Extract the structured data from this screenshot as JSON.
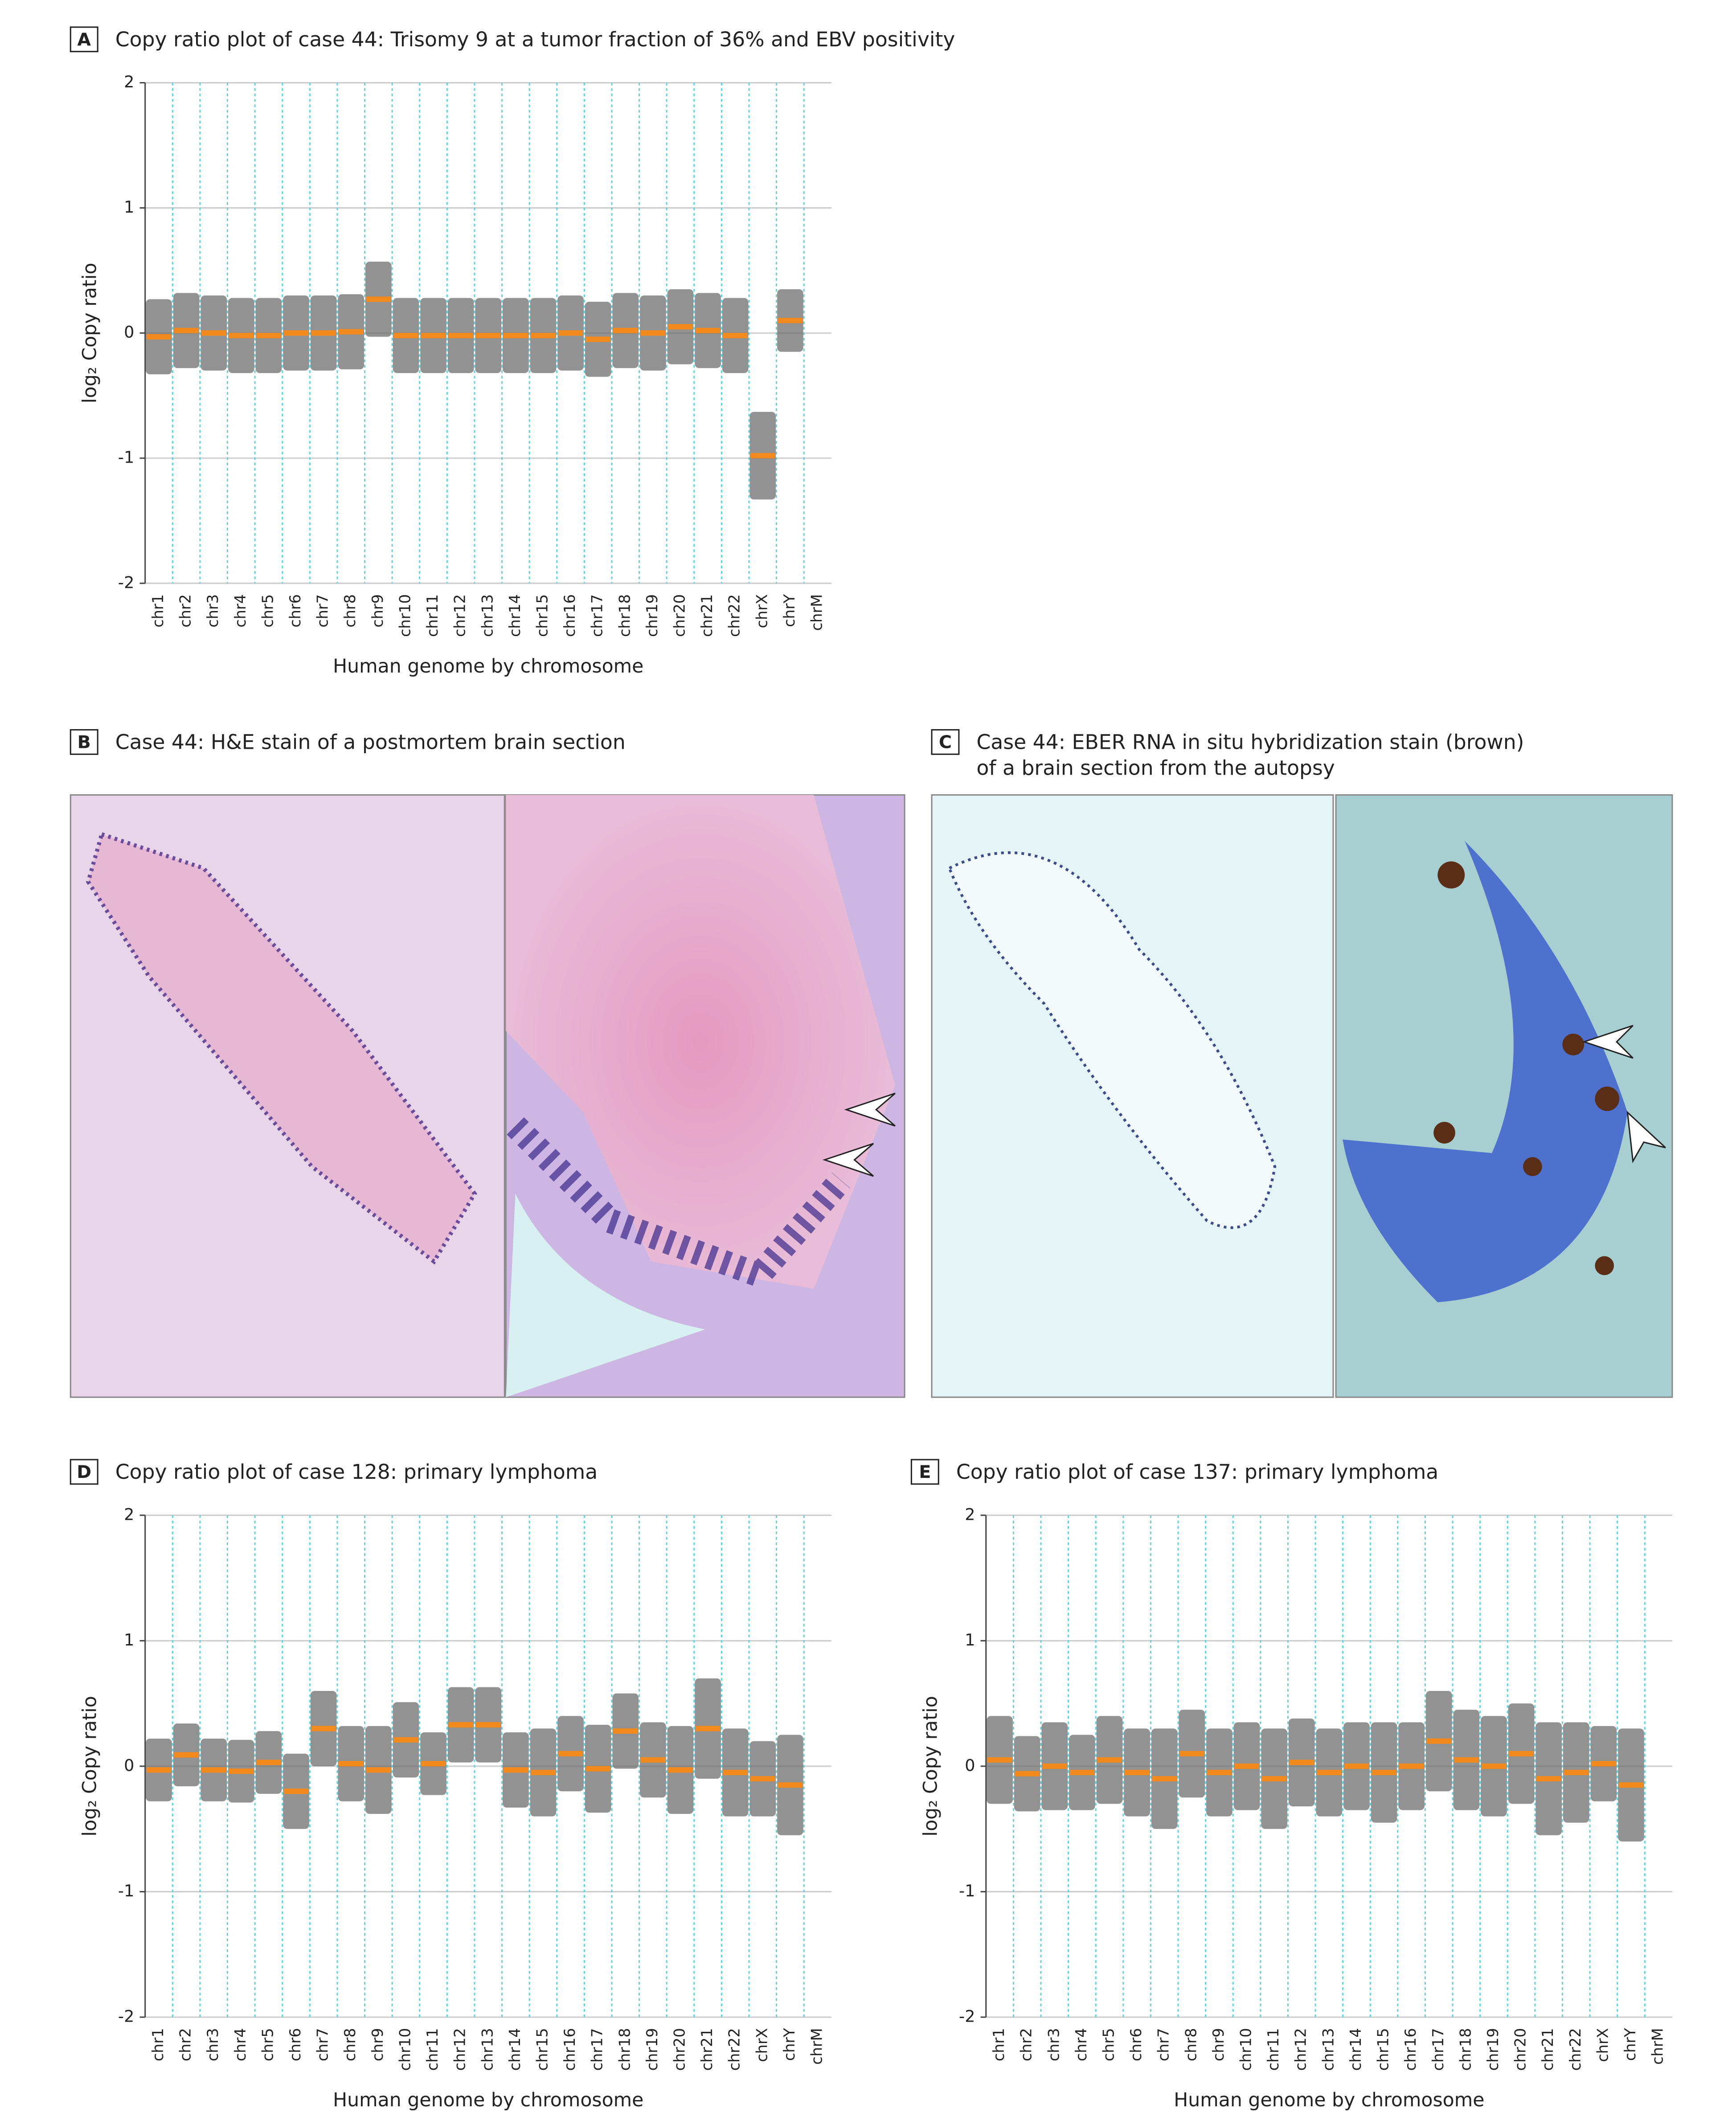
{
  "chart_data": [
    {
      "type": "segment",
      "panel": "A",
      "title": "Copy ratio plot of case 44: Trisomy 9 at a tumor fraction of 36% and EBV positivity",
      "x_label": "Human genome by chromosome",
      "y_label": "log₂ Copy ratio",
      "categories": [
        "chr1",
        "chr2",
        "chr3",
        "chr4",
        "chr5",
        "chr6",
        "chr7",
        "chr8",
        "chr9",
        "chr10",
        "chr11",
        "chr12",
        "chr13",
        "chr14",
        "chr15",
        "chr16",
        "chr17",
        "chr18",
        "chr19",
        "chr20",
        "chr21",
        "chr22",
        "chrX",
        "chrY",
        "chrM"
      ],
      "values": [
        -0.03,
        0.02,
        0.0,
        -0.02,
        -0.02,
        0.0,
        0.0,
        0.01,
        0.27,
        -0.02,
        -0.02,
        -0.02,
        -0.02,
        -0.02,
        -0.02,
        0.0,
        -0.05,
        0.02,
        0.0,
        0.05,
        0.02,
        -0.02,
        -0.98,
        0.1,
        null
      ],
      "spread": [
        0.3,
        0.3,
        0.3,
        0.3,
        0.3,
        0.3,
        0.3,
        0.3,
        0.3,
        0.3,
        0.3,
        0.3,
        0.3,
        0.3,
        0.3,
        0.3,
        0.3,
        0.3,
        0.3,
        0.3,
        0.3,
        0.3,
        0.35,
        0.25,
        null
      ],
      "color": "#f28a1e",
      "cloud_color": "#6e6e6e",
      "boundary_color": "#5fd3e0",
      "ylim": [
        -2,
        2
      ],
      "yticks": [
        -2,
        -1,
        0,
        1,
        2
      ],
      "grid": true
    },
    {
      "type": "segment",
      "panel": "D",
      "title": "Copy ratio plot of case 128: primary lymphoma",
      "x_label": "Human genome by chromosome",
      "y_label": "log₂ Copy ratio",
      "categories": [
        "chr1",
        "chr2",
        "chr3",
        "chr4",
        "chr5",
        "chr6",
        "chr7",
        "chr8",
        "chr9",
        "chr10",
        "chr11",
        "chr12",
        "chr13",
        "chr14",
        "chr15",
        "chr16",
        "chr17",
        "chr18",
        "chr19",
        "chr20",
        "chr21",
        "chr22",
        "chrX",
        "chrY",
        "chrM"
      ],
      "values": [
        -0.03,
        0.09,
        -0.03,
        -0.04,
        0.03,
        -0.2,
        0.3,
        0.02,
        -0.03,
        0.21,
        0.02,
        0.33,
        0.33,
        -0.03,
        -0.05,
        0.1,
        -0.02,
        0.28,
        0.05,
        -0.03,
        0.3,
        -0.05,
        -0.1,
        -0.15,
        null
      ],
      "spread": [
        0.25,
        0.25,
        0.25,
        0.25,
        0.25,
        0.3,
        0.3,
        0.3,
        0.35,
        0.3,
        0.25,
        0.3,
        0.3,
        0.3,
        0.35,
        0.3,
        0.35,
        0.3,
        0.3,
        0.35,
        0.4,
        0.35,
        0.3,
        0.4,
        null
      ],
      "color": "#f28a1e",
      "cloud_color": "#6e6e6e",
      "boundary_color": "#5fd3e0",
      "ylim": [
        -2,
        2
      ],
      "yticks": [
        -2,
        -1,
        0,
        1,
        2
      ],
      "grid": true
    },
    {
      "type": "segment",
      "panel": "E",
      "title": "Copy ratio plot of case 137: primary lymphoma",
      "x_label": "Human genome by chromosome",
      "y_label": "log₂ Copy ratio",
      "categories": [
        "chr1",
        "chr2",
        "chr3",
        "chr4",
        "chr5",
        "chr6",
        "chr7",
        "chr8",
        "chr9",
        "chr10",
        "chr11",
        "chr12",
        "chr13",
        "chr14",
        "chr15",
        "chr16",
        "chr17",
        "chr18",
        "chr19",
        "chr20",
        "chr21",
        "chr22",
        "chrX",
        "chrY",
        "chrM"
      ],
      "values": [
        0.05,
        -0.06,
        0.0,
        -0.05,
        0.05,
        -0.05,
        -0.1,
        0.1,
        -0.05,
        0.0,
        -0.1,
        0.03,
        -0.05,
        0.0,
        -0.05,
        0.0,
        0.2,
        0.05,
        0.0,
        0.1,
        -0.1,
        -0.05,
        0.02,
        -0.15,
        null
      ],
      "spread": [
        0.35,
        0.3,
        0.35,
        0.3,
        0.35,
        0.35,
        0.4,
        0.35,
        0.35,
        0.35,
        0.4,
        0.35,
        0.35,
        0.35,
        0.4,
        0.35,
        0.4,
        0.4,
        0.4,
        0.4,
        0.45,
        0.4,
        0.3,
        0.45,
        null
      ],
      "color": "#f28a1e",
      "cloud_color": "#6e6e6e",
      "boundary_color": "#5fd3e0",
      "ylim": [
        -2,
        2
      ],
      "yticks": [
        -2,
        -1,
        0,
        1,
        2
      ],
      "grid": true
    }
  ],
  "panels": [
    {
      "label": "B",
      "title_lines": [
        "Case 44: H&E stain of a postmortem brain section"
      ]
    },
    {
      "label": "C",
      "title_lines": [
        "Case 44: EBER RNA in situ hybridization stain (brown)",
        "of a brain section from the autopsy"
      ]
    }
  ]
}
